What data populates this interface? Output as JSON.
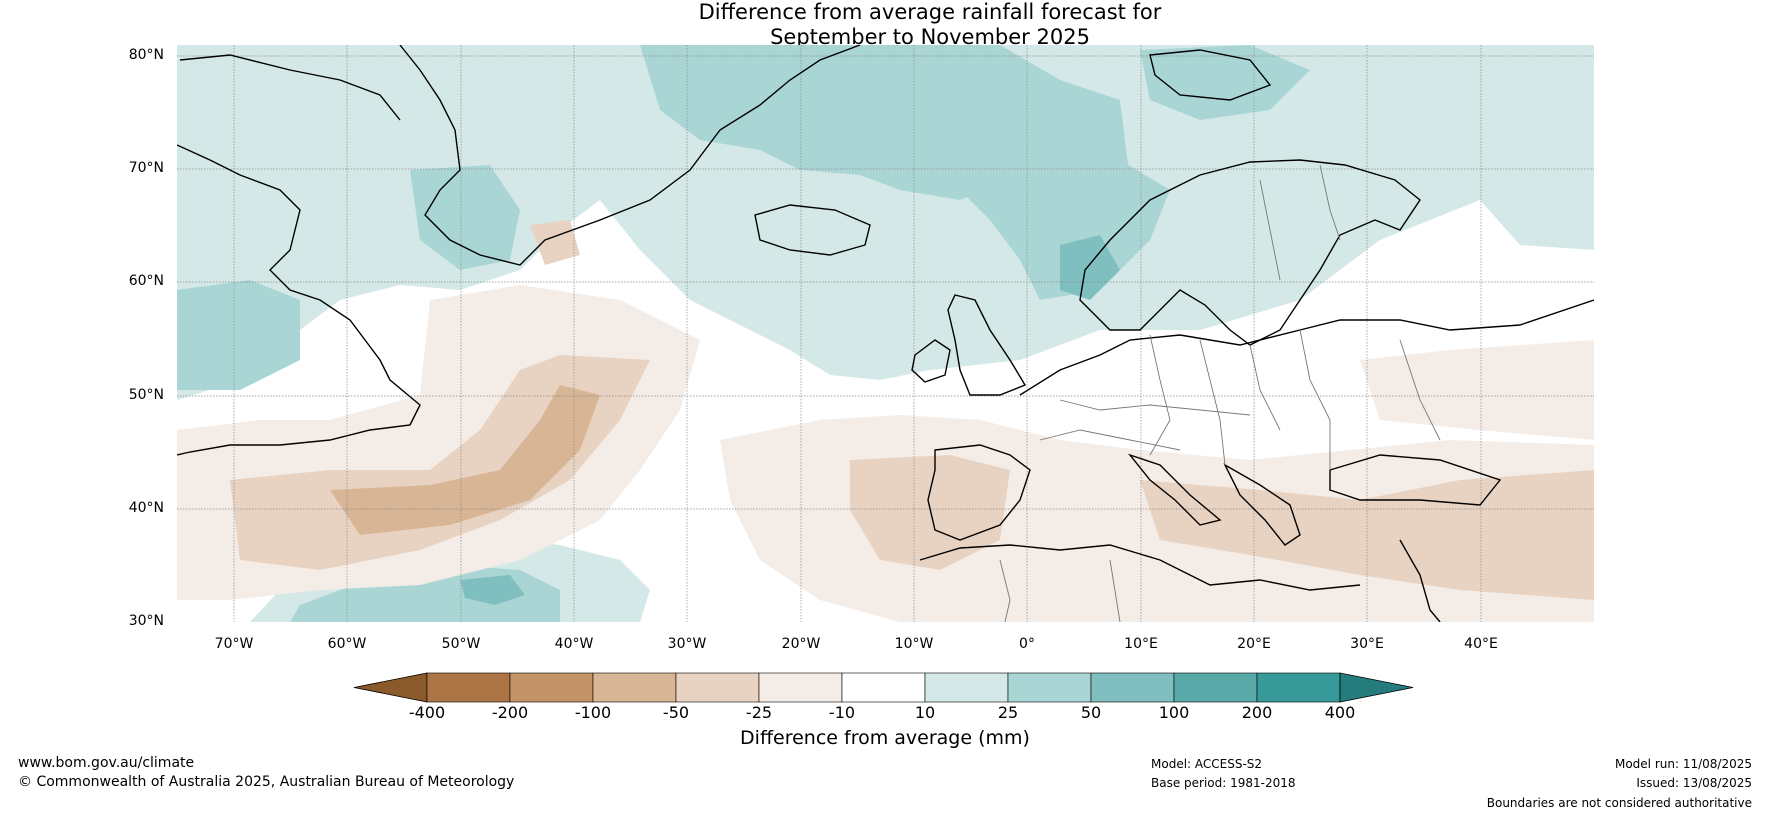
{
  "title": {
    "line1": "Difference from average rainfall forecast for",
    "line2": "September to November 2025"
  },
  "map": {
    "projection": "equirectangular",
    "lon_range": [
      -75,
      50
    ],
    "lat_range": [
      30,
      81
    ],
    "latitude_labels": [
      "80°N",
      "70°N",
      "60°N",
      "50°N",
      "40°N",
      "30°N"
    ],
    "longitude_labels": [
      "70°W",
      "60°W",
      "50°W",
      "40°W",
      "30°W",
      "20°W",
      "10°W",
      "0°",
      "10°E",
      "20°E",
      "30°E",
      "40°E"
    ],
    "gridlines": true
  },
  "colorbar": {
    "title": "Difference from average (mm)",
    "ticks": [
      "-400",
      "-200",
      "-100",
      "-50",
      "-25",
      "-10",
      "10",
      "25",
      "50",
      "100",
      "200",
      "400"
    ],
    "colors": [
      "#8b5a2b",
      "#ad7545",
      "#c29468",
      "#d7b595",
      "#e8d3c2",
      "#f4ece6",
      "#ffffff",
      "#d4e9e7",
      "#aad5d5",
      "#80bfbf",
      "#5aa9a9",
      "#389999",
      "#257c7c"
    ],
    "extend": "both"
  },
  "footer": {
    "url": "www.bom.gov.au/climate",
    "copyright": "© Commonwealth of Australia 2025, Australian Bureau of Meteorology",
    "model": "Model: ACCESS-S2",
    "base_period": "Base period: 1981-2018",
    "model_run": "Model run: 11/08/2025",
    "issued": "Issued: 13/08/2025",
    "disclaimer": "Boundaries are not considered authoritative"
  }
}
